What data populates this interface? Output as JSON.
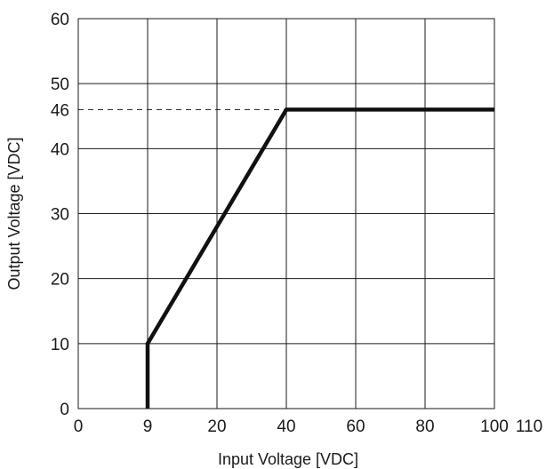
{
  "chart_data": {
    "type": "line",
    "title": "",
    "xlabel": "Input Voltage [VDC]",
    "ylabel": "Output Voltage [VDC]",
    "xlim": [
      0,
      110
    ],
    "ylim": [
      0,
      60
    ],
    "x_ticks": [
      0,
      9,
      20,
      40,
      60,
      80,
      100,
      110
    ],
    "x_tick_labels": [
      "0",
      "9",
      "20",
      "40",
      "60",
      "80",
      "100",
      "110"
    ],
    "y_ticks": [
      0,
      10,
      20,
      30,
      40,
      46,
      50,
      60
    ],
    "y_tick_labels": [
      "0",
      "10",
      "20",
      "30",
      "40",
      "46",
      "50",
      "60"
    ],
    "grid": true,
    "series": [
      {
        "x": [
          9,
          9,
          40,
          100
        ],
        "y": [
          0,
          10,
          46,
          46
        ],
        "color": "#111111"
      }
    ],
    "reference_lines": [
      {
        "orientation": "horizontal",
        "y": 46,
        "x_range": [
          0,
          40
        ],
        "style": "dashed"
      }
    ]
  }
}
